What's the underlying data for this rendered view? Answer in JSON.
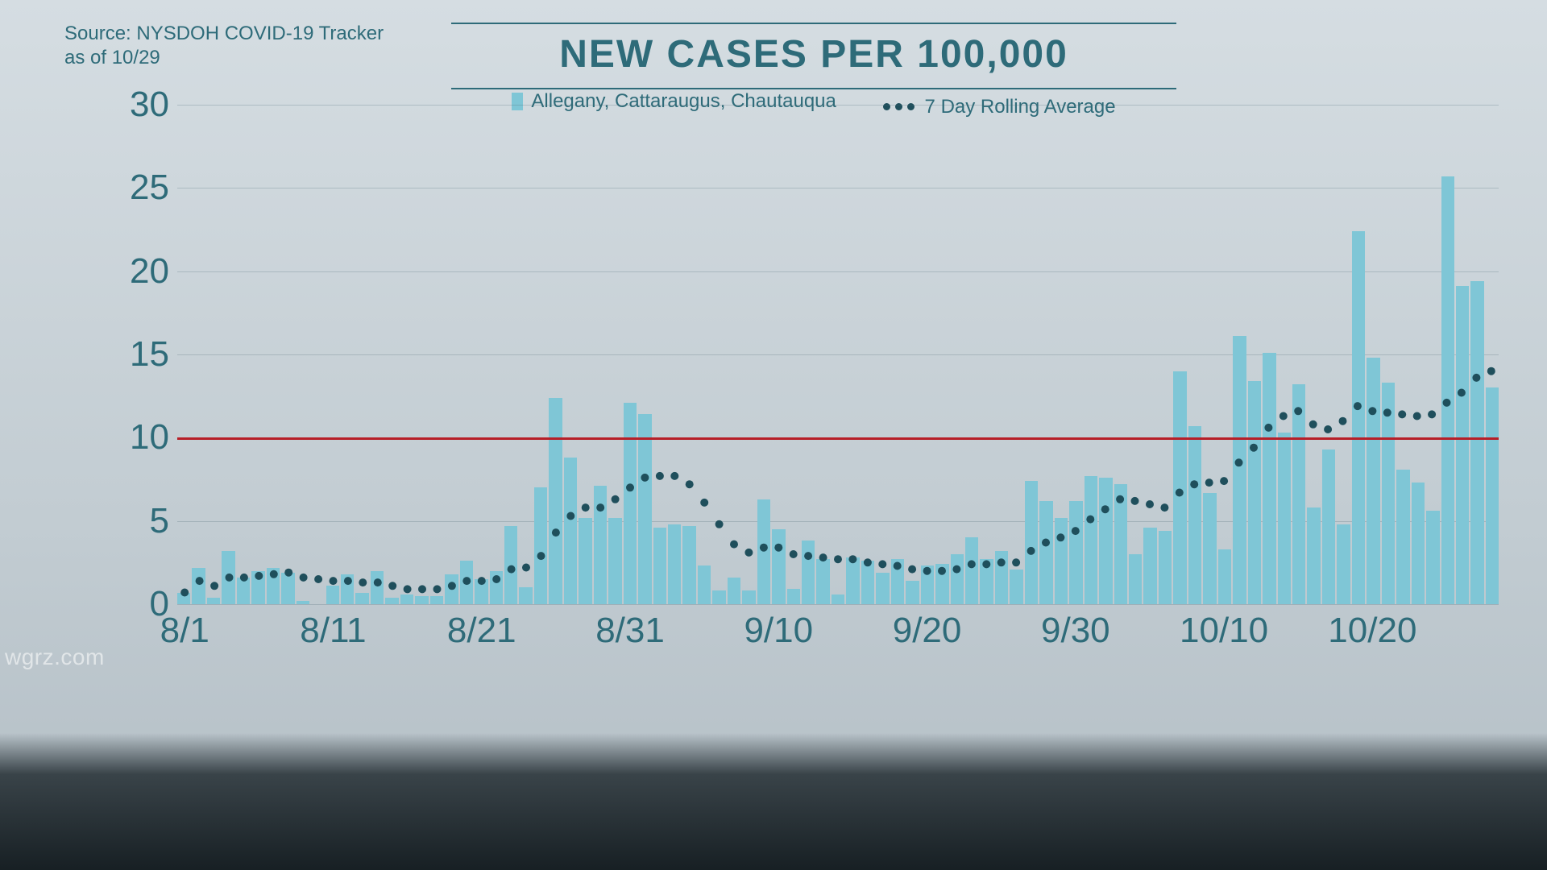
{
  "source_line1": "Source: NYSDOH COVID-19 Tracker",
  "source_line2": "as of 10/29",
  "watermark": "wgrz.com",
  "title": "NEW CASES PER 100,000",
  "legend": {
    "bars_label": "Allegany, Cattaraugus, Chautauqua",
    "avg_label": "7 Day Rolling Average"
  },
  "chart": {
    "type": "bar+dotted-line",
    "background_color": "#d0d9df",
    "bar_color": "#7fc6d6",
    "avg_dot_color": "#1f4f5c",
    "grid_color": "rgba(70,100,110,0.25)",
    "threshold_color": "#b71f28",
    "text_color": "#2e6b79",
    "ylim": [
      0,
      30
    ],
    "yticks": [
      0,
      5,
      10,
      15,
      20,
      25,
      30
    ],
    "threshold": 10,
    "x_tick_labels": [
      "8/1",
      "8/11",
      "8/21",
      "8/31",
      "9/10",
      "9/20",
      "9/30",
      "10/10",
      "10/20"
    ],
    "x_tick_positions": [
      0,
      10,
      20,
      30,
      40,
      50,
      60,
      70,
      80
    ],
    "n_days": 89,
    "bar_values": [
      0.7,
      2.2,
      0.4,
      3.2,
      1.6,
      2.0,
      2.2,
      1.9,
      0.2,
      0.0,
      1.1,
      1.8,
      0.7,
      2.0,
      0.4,
      0.6,
      0.5,
      0.5,
      1.8,
      2.6,
      1.5,
      2.0,
      4.7,
      1.0,
      7.0,
      12.4,
      8.8,
      5.2,
      7.1,
      5.2,
      12.1,
      11.4,
      4.6,
      4.8,
      4.7,
      2.3,
      0.8,
      1.6,
      0.8,
      6.3,
      4.5,
      0.9,
      3.8,
      2.7,
      0.6,
      2.8,
      2.6,
      1.9,
      2.7,
      1.4,
      2.3,
      2.4,
      3.0,
      4.0,
      2.7,
      3.2,
      2.1,
      7.4,
      6.2,
      5.2,
      6.2,
      7.7,
      7.6,
      7.2,
      3.0,
      4.6,
      4.4,
      14.0,
      10.7,
      6.7,
      3.3,
      16.1,
      13.4,
      15.1,
      10.3,
      13.2,
      5.8,
      9.3,
      4.8,
      22.4,
      14.8,
      13.3,
      8.1,
      7.3,
      5.6,
      25.7,
      19.1,
      19.4,
      13.0
    ],
    "avg_values": [
      0.7,
      1.4,
      1.1,
      1.6,
      1.6,
      1.7,
      1.8,
      1.9,
      1.6,
      1.5,
      1.4,
      1.4,
      1.3,
      1.3,
      1.1,
      0.9,
      0.9,
      0.9,
      1.1,
      1.4,
      1.4,
      1.5,
      2.1,
      2.2,
      2.9,
      4.3,
      5.3,
      5.8,
      5.8,
      6.3,
      7.0,
      7.6,
      7.7,
      7.7,
      7.2,
      6.1,
      4.8,
      3.6,
      3.1,
      3.4,
      3.4,
      3.0,
      2.9,
      2.8,
      2.7,
      2.7,
      2.5,
      2.4,
      2.3,
      2.1,
      2.0,
      2.0,
      2.1,
      2.4,
      2.4,
      2.5,
      2.5,
      3.2,
      3.7,
      4.0,
      4.4,
      5.1,
      5.7,
      6.3,
      6.2,
      6.0,
      5.8,
      6.7,
      7.2,
      7.3,
      7.4,
      8.5,
      9.4,
      10.6,
      11.3,
      11.6,
      10.8,
      10.5,
      11.0,
      11.9,
      11.6,
      11.5,
      11.4,
      11.3,
      11.4,
      12.1,
      12.7,
      13.6,
      14.0
    ],
    "label_fontsize": 44,
    "title_fontsize": 48,
    "legend_fontsize": 24,
    "source_fontsize": 24,
    "avg_dot_radius": 5,
    "threshold_width": 3
  }
}
